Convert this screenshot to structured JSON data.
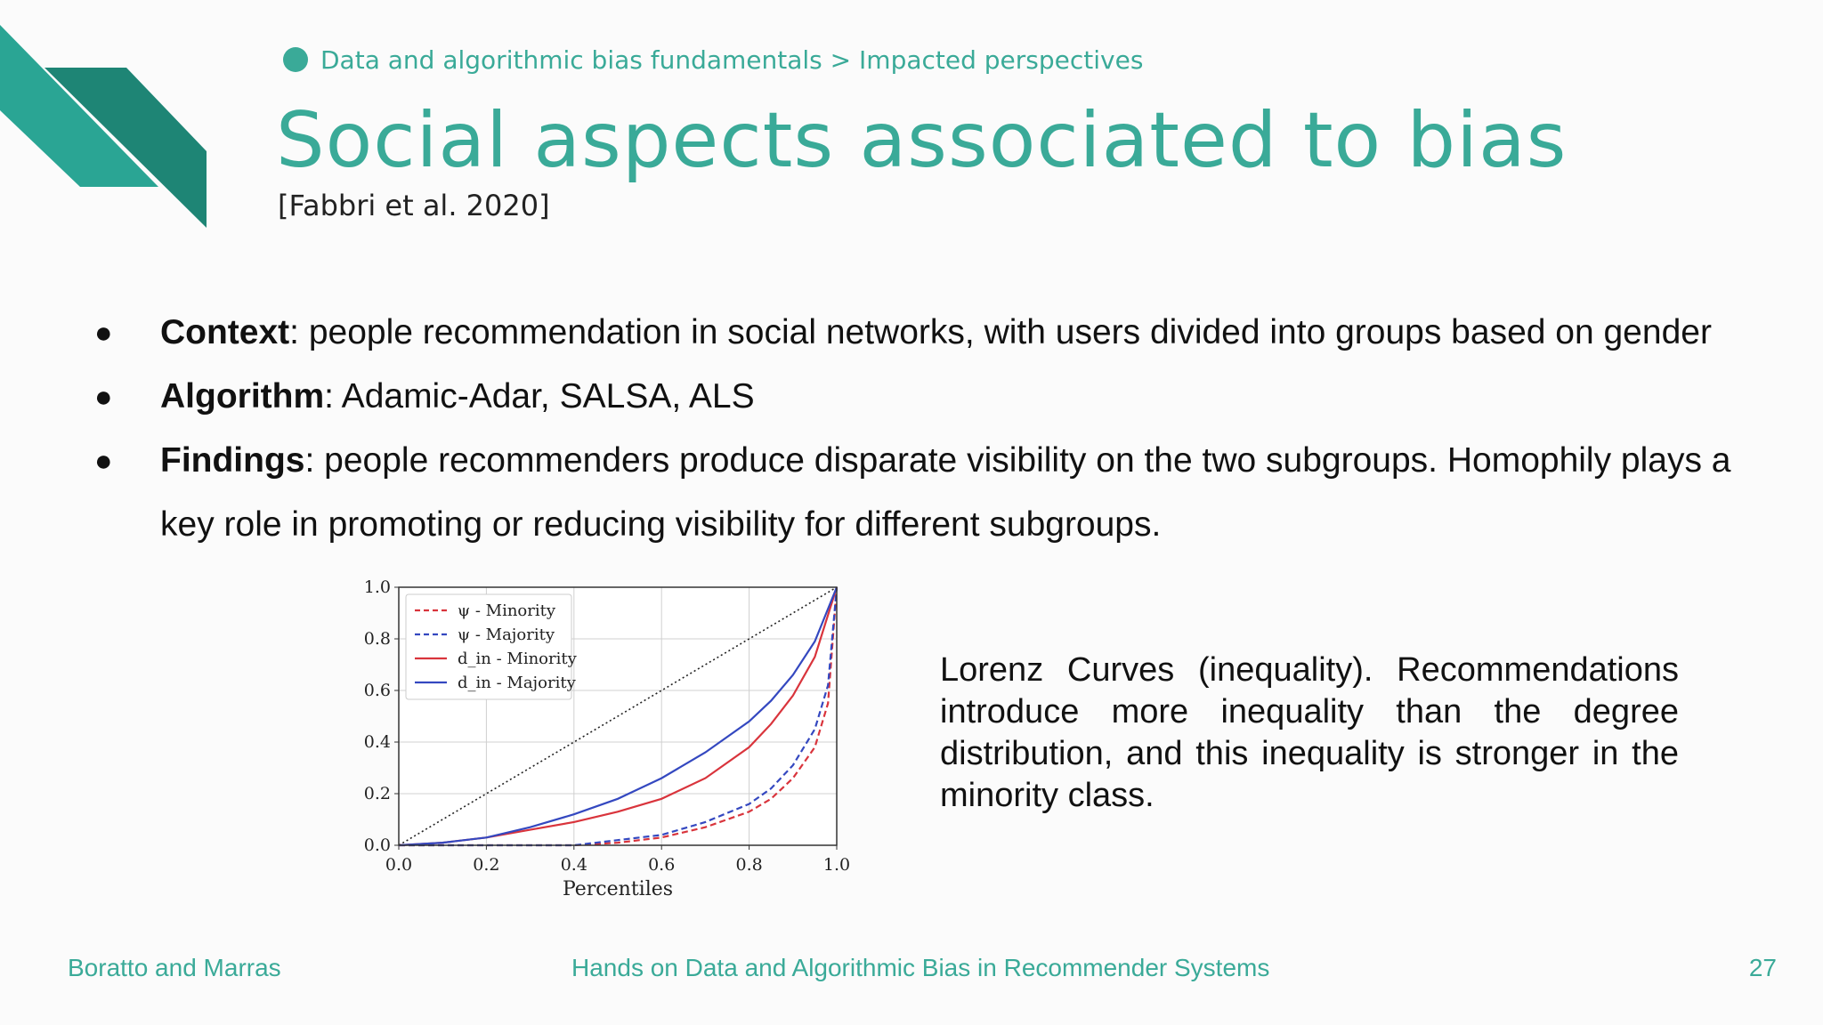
{
  "header": {
    "breadcrumb": "Data and algorithmic bias fundamentals > Impacted perspectives",
    "title": "Social aspects associated to bias",
    "citation": "[Fabbri et al. 2020]"
  },
  "bullets": [
    {
      "label": "Context",
      "text": ": people recommendation in social networks, with users divided into groups based on gender"
    },
    {
      "label": "Algorithm",
      "text": ": Adamic-Adar, SALSA, ALS"
    },
    {
      "label": "Findings",
      "text": ": people recommenders produce disparate visibility on the two subgroups. Homophily plays a key role in promoting or reducing visibility for different subgroups."
    }
  ],
  "caption": "Lorenz Curves (inequality). Recommendations introduce more inequality than the degree distribution, and this inequality is stronger in the minority class.",
  "footer": {
    "authors": "Boratto and Marras",
    "course": "Hands on Data and Algorithmic Bias in Recommender Systems",
    "page": "27"
  },
  "colors": {
    "accent": "#3aaa98",
    "accent_dark": "#1e8575",
    "minority": "#d9343c",
    "majority": "#3448c0"
  },
  "chart_data": {
    "type": "line",
    "xlabel": "Percentiles",
    "ylabel": "",
    "xlim": [
      0,
      1
    ],
    "ylim": [
      0,
      1
    ],
    "xticks": [
      "0.0",
      "0.2",
      "0.4",
      "0.6",
      "0.8",
      "1.0"
    ],
    "yticks": [
      "0.0",
      "0.2",
      "0.4",
      "0.6",
      "0.8",
      "1.0"
    ],
    "grid": true,
    "legend_position": "top-left",
    "legend": [
      "ψ - Minority",
      "ψ - Majority",
      "d_in - Minority",
      "d_in - Majority"
    ],
    "series": [
      {
        "name": "ψ - Minority",
        "color": "#d9343c",
        "dash": true,
        "x": [
          0,
          0.1,
          0.2,
          0.3,
          0.4,
          0.5,
          0.6,
          0.7,
          0.8,
          0.85,
          0.9,
          0.95,
          0.98,
          1.0
        ],
        "y": [
          0,
          0,
          0,
          0,
          0,
          0.01,
          0.03,
          0.07,
          0.13,
          0.18,
          0.26,
          0.38,
          0.55,
          1.0
        ]
      },
      {
        "name": "ψ - Majority",
        "color": "#3448c0",
        "dash": true,
        "x": [
          0,
          0.1,
          0.2,
          0.3,
          0.4,
          0.5,
          0.6,
          0.7,
          0.8,
          0.85,
          0.9,
          0.95,
          0.98,
          1.0
        ],
        "y": [
          0,
          0,
          0,
          0,
          0,
          0.02,
          0.04,
          0.09,
          0.16,
          0.22,
          0.31,
          0.45,
          0.62,
          1.0
        ]
      },
      {
        "name": "d_in - Minority",
        "color": "#d9343c",
        "dash": false,
        "x": [
          0,
          0.1,
          0.2,
          0.3,
          0.4,
          0.5,
          0.6,
          0.7,
          0.8,
          0.85,
          0.9,
          0.95,
          1.0
        ],
        "y": [
          0,
          0.01,
          0.03,
          0.06,
          0.09,
          0.13,
          0.18,
          0.26,
          0.38,
          0.47,
          0.58,
          0.73,
          1.0
        ]
      },
      {
        "name": "d_in - Majority",
        "color": "#3448c0",
        "dash": false,
        "x": [
          0,
          0.1,
          0.2,
          0.3,
          0.4,
          0.5,
          0.6,
          0.7,
          0.8,
          0.85,
          0.9,
          0.95,
          1.0
        ],
        "y": [
          0,
          0.01,
          0.03,
          0.07,
          0.12,
          0.18,
          0.26,
          0.36,
          0.48,
          0.56,
          0.66,
          0.79,
          1.0
        ]
      },
      {
        "name": "",
        "color": "#222222",
        "dotted": true,
        "x": [
          0,
          1
        ],
        "y": [
          0,
          1
        ]
      }
    ]
  }
}
